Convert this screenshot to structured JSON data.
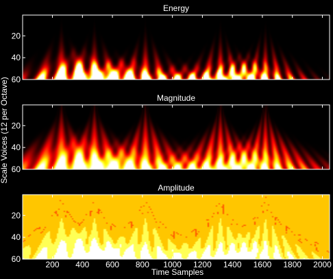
{
  "figure": {
    "ylabel": "Scale Voices (12 per Octave)",
    "xlabel": "Time Samples"
  },
  "chart_data": [
    {
      "type": "heatmap",
      "title": "Energy",
      "colormap": "hot",
      "x_ticks": [
        200,
        400,
        600,
        800,
        1000,
        1200,
        1400,
        1600,
        1800,
        2000
      ],
      "y_ticks": [
        20,
        40,
        60
      ],
      "xlim": [
        1,
        2048
      ],
      "ylim": [
        1,
        60
      ],
      "transient_centers": [
        260,
        480,
        820,
        1320,
        1620
      ],
      "intensity_power": 2.2
    },
    {
      "type": "heatmap",
      "title": "Magnitude",
      "colormap": "hot",
      "x_ticks": [
        200,
        400,
        600,
        800,
        1000,
        1200,
        1400,
        1600,
        1800,
        2000
      ],
      "y_ticks": [
        20,
        40,
        60
      ],
      "xlim": [
        1,
        2048
      ],
      "ylim": [
        1,
        60
      ],
      "transient_centers": [
        260,
        480,
        820,
        1320,
        1620
      ],
      "intensity_power": 1.0
    },
    {
      "type": "heatmap",
      "title": "Amplitude",
      "colormap": "hot",
      "x_ticks": [
        200,
        400,
        600,
        800,
        1000,
        1200,
        1400,
        1600,
        1800,
        2000
      ],
      "y_ticks": [
        20,
        40,
        60
      ],
      "xlim": [
        1,
        2048
      ],
      "ylim": [
        1,
        60
      ],
      "transient_centers": [
        260,
        480,
        820,
        1320,
        1620
      ],
      "background_level": 0.62,
      "quantized_levels": 6
    }
  ]
}
